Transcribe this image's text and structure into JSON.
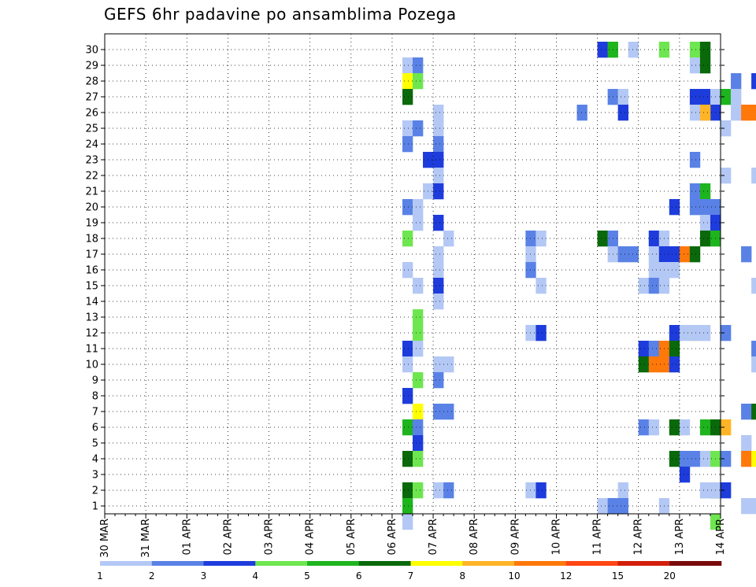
{
  "chart_data": {
    "type": "heatmap",
    "title": "GEFS 6hr padavine po ansamblima Pozega",
    "xlabel": "",
    "ylabel": "",
    "members": [
      "1",
      "2",
      "3",
      "4",
      "5",
      "6",
      "7",
      "8",
      "9",
      "10",
      "11",
      "12",
      "13",
      "14",
      "15",
      "16",
      "17",
      "18",
      "19",
      "20",
      "21",
      "22",
      "23",
      "24",
      "25",
      "26",
      "27",
      "28",
      "29",
      "30"
    ],
    "x_tick_labels": [
      "30 MAR",
      "31 MAR",
      "01 APR",
      "02 APR",
      "03 APR",
      "04 APR",
      "05 APR",
      "06 APR",
      "07 APR",
      "08 APR",
      "09 APR",
      "10 APR",
      "11 APR",
      "12 APR",
      "13 APR",
      "14 APR"
    ],
    "time_steps_per_day": 4,
    "grid": true,
    "legend": {
      "position": "bottom",
      "labels": [
        "1",
        "2",
        "3",
        "4",
        "5",
        "6",
        "7",
        "8",
        "10",
        "12",
        "15",
        "20"
      ],
      "colors": [
        "#b4c8f5",
        "#5a82e6",
        "#1e3cdc",
        "#6ee650",
        "#1eb41e",
        "#0a690a",
        "#ffff00",
        "#ffb428",
        "#ff780a",
        "#ff4614",
        "#d21e0a",
        "#780a0a"
      ]
    },
    "cells": [
      [
        30,
        0,
        2
      ],
      [
        30,
        1,
        4
      ],
      [
        30,
        3,
        0
      ],
      [
        30,
        6,
        3
      ],
      [
        30,
        9,
        3
      ],
      [
        30,
        10,
        5
      ],
      [
        29,
        29,
        0
      ],
      [
        29,
        30,
        1
      ],
      [
        29,
        9,
        0
      ],
      [
        29,
        10,
        5
      ],
      [
        28,
        29,
        6
      ],
      [
        28,
        30,
        3
      ],
      [
        28,
        13,
        1
      ],
      [
        28,
        15,
        2
      ],
      [
        28,
        19,
        0
      ],
      [
        27,
        29,
        5
      ],
      [
        27,
        49,
        1
      ],
      [
        27,
        50,
        0
      ],
      [
        27,
        59,
        6
      ],
      [
        27,
        60,
        4
      ],
      [
        27,
        61,
        0
      ],
      [
        27,
        9,
        2
      ],
      [
        27,
        10,
        2
      ],
      [
        27,
        11,
        0
      ],
      [
        26,
        32,
        0
      ],
      [
        26,
        46,
        1
      ],
      [
        26,
        50,
        2
      ],
      [
        26,
        58,
        0
      ],
      [
        26,
        59,
        2
      ],
      [
        26,
        61,
        0
      ],
      [
        26,
        62,
        8
      ],
      [
        26,
        63,
        8
      ],
      [
        26,
        64,
        0
      ],
      [
        26,
        65,
        7
      ],
      [
        26,
        66,
        5
      ],
      [
        26,
        67,
        2
      ],
      [
        26,
        9,
        0
      ],
      [
        26,
        10,
        7
      ],
      [
        25,
        29,
        0
      ],
      [
        25,
        30,
        1
      ],
      [
        25,
        32,
        0
      ],
      [
        25,
        64,
        1
      ],
      [
        25,
        65,
        0
      ],
      [
        25,
        67,
        0
      ],
      [
        25,
        12,
        0
      ],
      [
        24,
        29,
        1
      ],
      [
        24,
        32,
        1
      ],
      [
        23,
        31,
        2
      ],
      [
        23,
        32,
        2
      ],
      [
        23,
        65,
        1
      ],
      [
        23,
        66,
        1
      ],
      [
        23,
        9,
        1
      ],
      [
        22,
        32,
        0
      ],
      [
        22,
        63,
        0
      ],
      [
        22,
        12,
        0
      ],
      [
        21,
        31,
        0
      ],
      [
        21,
        32,
        2
      ],
      [
        21,
        9,
        1
      ],
      [
        21,
        10,
        4
      ],
      [
        20,
        29,
        1
      ],
      [
        20,
        30,
        0
      ],
      [
        20,
        57,
        0
      ],
      [
        20,
        58,
        2
      ],
      [
        20,
        59,
        1
      ],
      [
        20,
        7,
        2
      ],
      [
        20,
        9,
        1
      ],
      [
        20,
        10,
        1
      ],
      [
        19,
        30,
        0
      ],
      [
        19,
        32,
        2
      ],
      [
        19,
        66,
        1
      ],
      [
        19,
        10,
        0
      ],
      [
        19,
        11,
        2
      ],
      [
        18,
        29,
        3
      ],
      [
        18,
        33,
        0
      ],
      [
        18,
        41,
        1
      ],
      [
        18,
        42,
        0
      ],
      [
        18,
        48,
        5
      ],
      [
        18,
        49,
        1
      ],
      [
        18,
        53,
        2
      ],
      [
        18,
        64,
        0
      ],
      [
        18,
        65,
        0
      ],
      [
        18,
        6,
        0
      ],
      [
        18,
        10,
        5
      ],
      [
        18,
        11,
        4
      ],
      [
        17,
        32,
        0
      ],
      [
        17,
        41,
        0
      ],
      [
        17,
        49,
        0
      ],
      [
        17,
        50,
        1
      ],
      [
        17,
        51,
        1
      ],
      [
        17,
        62,
        1
      ],
      [
        17,
        64,
        1
      ],
      [
        17,
        65,
        0
      ],
      [
        17,
        66,
        1
      ],
      [
        17,
        5,
        0
      ],
      [
        17,
        6,
        2
      ],
      [
        17,
        7,
        2
      ],
      [
        17,
        8,
        8
      ],
      [
        17,
        9,
        5
      ],
      [
        16,
        29,
        0
      ],
      [
        16,
        32,
        0
      ],
      [
        16,
        41,
        1
      ],
      [
        16,
        5,
        0
      ],
      [
        16,
        6,
        0
      ],
      [
        16,
        7,
        0
      ],
      [
        15,
        30,
        0
      ],
      [
        15,
        32,
        2
      ],
      [
        15,
        42,
        0
      ],
      [
        15,
        63,
        0
      ],
      [
        15,
        65,
        1
      ],
      [
        15,
        67,
        1
      ],
      [
        15,
        4,
        0
      ],
      [
        15,
        5,
        1
      ],
      [
        15,
        6,
        0
      ],
      [
        14,
        32,
        0
      ],
      [
        13,
        30,
        3
      ],
      [
        12,
        30,
        3
      ],
      [
        12,
        41,
        0
      ],
      [
        12,
        42,
        2
      ],
      [
        12,
        55,
        2
      ],
      [
        12,
        56,
        0
      ],
      [
        12,
        57,
        6
      ],
      [
        12,
        58,
        0
      ],
      [
        12,
        60,
        1
      ],
      [
        12,
        9,
        0
      ],
      [
        11,
        29,
        2
      ],
      [
        11,
        30,
        0
      ],
      [
        11,
        63,
        1
      ],
      [
        11,
        65,
        1
      ],
      [
        11,
        66,
        8
      ],
      [
        11,
        67,
        8
      ],
      [
        11,
        4,
        2
      ],
      [
        11,
        5,
        1
      ],
      [
        11,
        6,
        8
      ],
      [
        11,
        7,
        5
      ],
      [
        10,
        29,
        0
      ],
      [
        10,
        32,
        0
      ],
      [
        10,
        33,
        0
      ],
      [
        10,
        63,
        0
      ],
      [
        10,
        67,
        2
      ],
      [
        10,
        4,
        5
      ],
      [
        10,
        5,
        8
      ],
      [
        10,
        6,
        8
      ],
      [
        10,
        7,
        2
      ],
      [
        9,
        30,
        3
      ],
      [
        9,
        32,
        1
      ],
      [
        8,
        29,
        2
      ],
      [
        7,
        30,
        6
      ],
      [
        7,
        32,
        1
      ],
      [
        7,
        33,
        1
      ],
      [
        7,
        62,
        1
      ],
      [
        7,
        63,
        5
      ],
      [
        7,
        64,
        1
      ],
      [
        7,
        65,
        4
      ],
      [
        7,
        66,
        9
      ],
      [
        6,
        29,
        4
      ],
      [
        6,
        30,
        1
      ],
      [
        6,
        4,
        1
      ],
      [
        6,
        5,
        0
      ],
      [
        6,
        7,
        5
      ],
      [
        6,
        8,
        0
      ],
      [
        6,
        10,
        4
      ],
      [
        6,
        11,
        5
      ],
      [
        6,
        12,
        7
      ],
      [
        5,
        30,
        2
      ],
      [
        5,
        62,
        0
      ],
      [
        5,
        64,
        1
      ],
      [
        4,
        29,
        5
      ],
      [
        4,
        30,
        3
      ],
      [
        4,
        57,
        1
      ],
      [
        4,
        58,
        0
      ],
      [
        4,
        62,
        8
      ],
      [
        4,
        63,
        6
      ],
      [
        4,
        64,
        2
      ],
      [
        4,
        66,
        1
      ],
      [
        4,
        67,
        1
      ],
      [
        4,
        7,
        5
      ],
      [
        4,
        8,
        1
      ],
      [
        4,
        11,
        3
      ],
      [
        4,
        12,
        1
      ],
      [
        3,
        8,
        2
      ],
      [
        2,
        29,
        5
      ],
      [
        2,
        30,
        3
      ],
      [
        2,
        32,
        0
      ],
      [
        2,
        33,
        1
      ],
      [
        2,
        41,
        0
      ],
      [
        2,
        42,
        2
      ],
      [
        2,
        50,
        0
      ],
      [
        2,
        58,
        0
      ],
      [
        2,
        59,
        5
      ],
      [
        2,
        60,
        2
      ],
      [
        2,
        10,
        0
      ],
      [
        2,
        11,
        0
      ],
      [
        1,
        29,
        4
      ],
      [
        1,
        48,
        0
      ],
      [
        1,
        49,
        1
      ],
      [
        1,
        50,
        1
      ],
      [
        1,
        54,
        0
      ],
      [
        1,
        62,
        0
      ],
      [
        1,
        63,
        0
      ],
      [
        0,
        29,
        0
      ],
      [
        0,
        11,
        3
      ]
    ]
  }
}
